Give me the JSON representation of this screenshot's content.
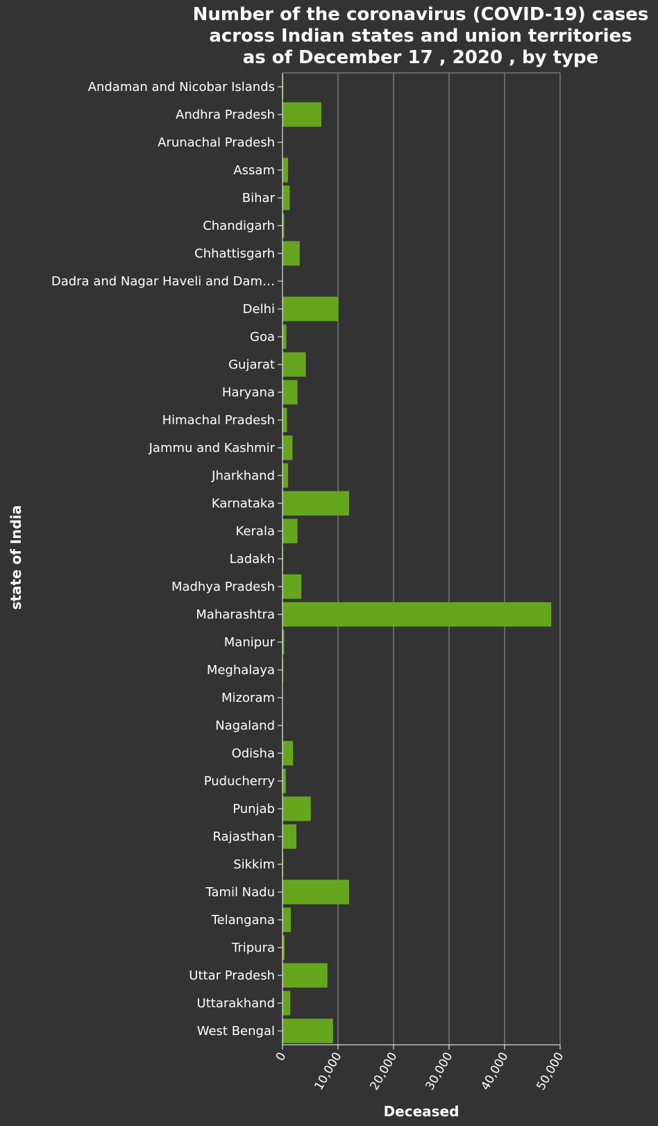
{
  "chart_data": {
    "type": "bar",
    "orientation": "horizontal",
    "title_lines": [
      "Number of the coronavirus (COVID-19) cases",
      "across Indian states and union territories",
      "as of December 17 , 2020 , by type"
    ],
    "xlabel": "Deceased",
    "ylabel": "state of India",
    "xlim": [
      0,
      50000
    ],
    "xticks": [
      0,
      10000,
      20000,
      30000,
      40000,
      50000
    ],
    "xtick_labels": [
      "0",
      "10,000",
      "20,000",
      "30,000",
      "40,000",
      "50,000"
    ],
    "grid": true,
    "bar_color": "#66a61e",
    "background_color": "#333333",
    "categories": [
      "Andaman and Nicobar Islands",
      "Andhra Pradesh",
      "Arunachal Pradesh",
      "Assam",
      "Bihar",
      "Chandigarh",
      "Chhattisgarh",
      "Dadra and Nagar Haveli and Dam…",
      "Delhi",
      "Goa",
      "Gujarat",
      "Haryana",
      "Himachal Pradesh",
      "Jammu and Kashmir",
      "Jharkhand",
      "Karnataka",
      "Kerala",
      "Ladakh",
      "Madhya Pradesh",
      "Maharashtra",
      "Manipur",
      "Meghalaya",
      "Mizoram",
      "Nagaland",
      "Odisha",
      "Puducherry",
      "Punjab",
      "Rajasthan",
      "Sikkim",
      "Tamil Nadu",
      "Telangana",
      "Tripura",
      "Uttar Pradesh",
      "Uttarakhand",
      "West Bengal"
    ],
    "values": [
      150,
      7000,
      50,
      1000,
      1300,
      300,
      3100,
      2,
      10100,
      700,
      4200,
      2700,
      800,
      1800,
      1000,
      12000,
      2700,
      120,
      3400,
      48400,
      300,
      130,
      3,
      90,
      1900,
      600,
      5100,
      2500,
      130,
      12000,
      1500,
      380,
      8100,
      1400,
      9100
    ]
  }
}
